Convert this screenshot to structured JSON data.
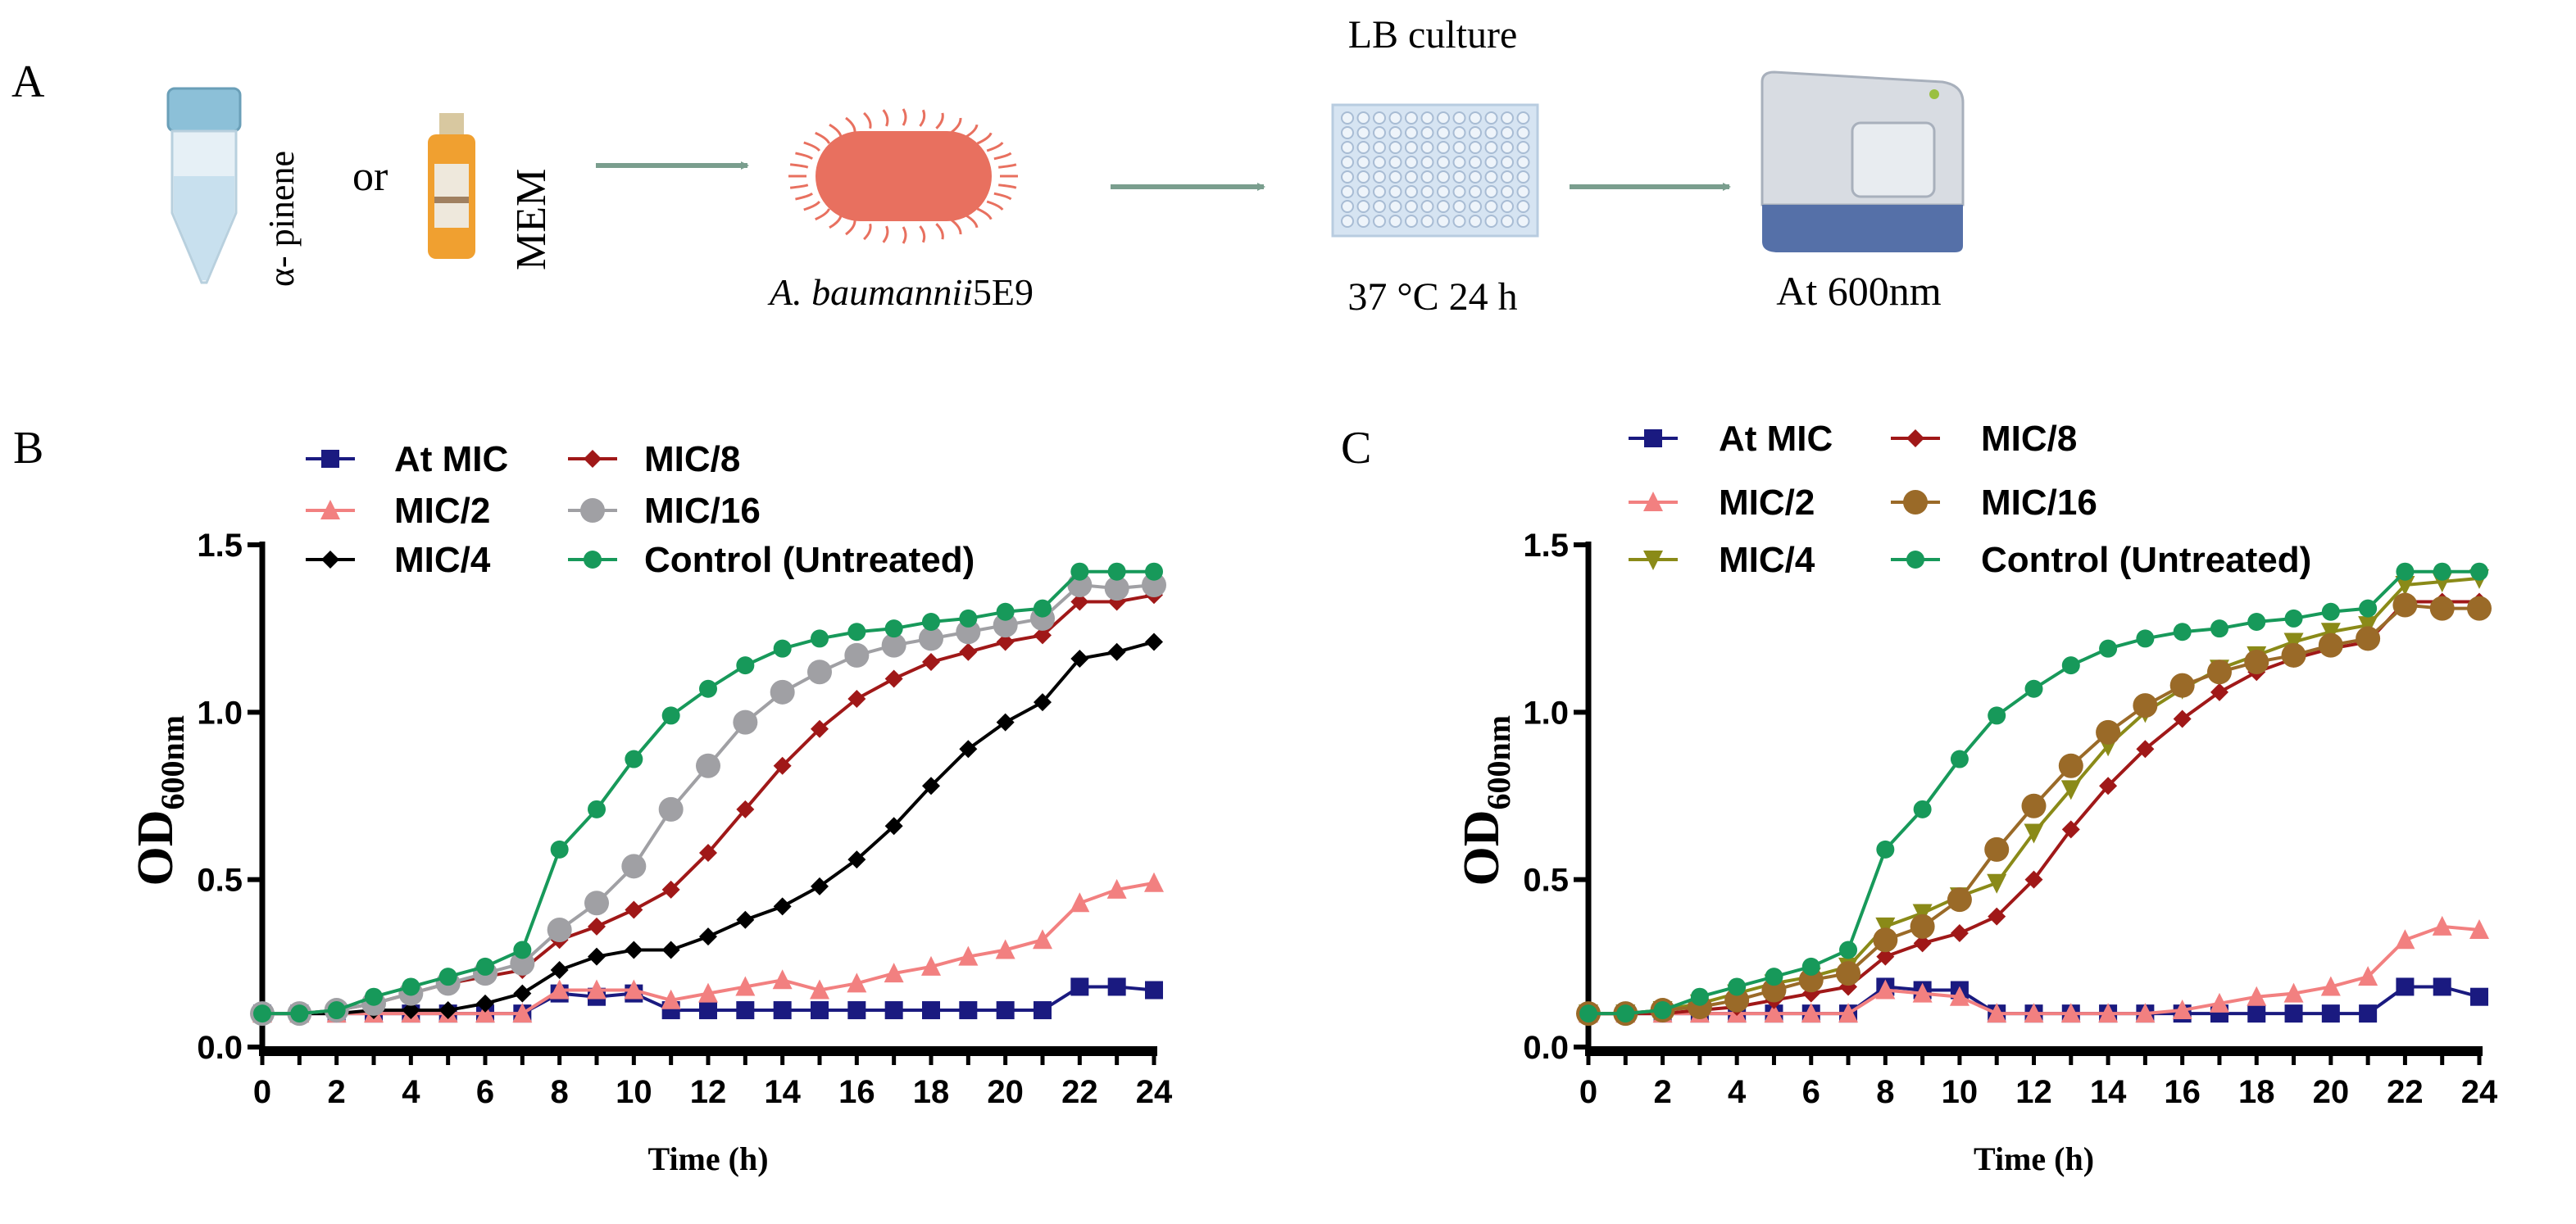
{
  "panel_a": {
    "label": "A",
    "compound1": "α- pinene",
    "or_text": "or",
    "compound2": "MEM",
    "organism": "A. baumannii",
    "strain": "5E9",
    "culture_label": "LB culture",
    "condition": "37 °C 24 h",
    "readout": "At 600nm",
    "colors": {
      "arrow": "#7a9e8e",
      "bacterium": "#e8705f",
      "plate": "#d6e4f2",
      "tube_cap": "#8cc0d8",
      "bottle": "#f0a030",
      "machine_base": "#5570a8"
    }
  },
  "chart_data": [
    {
      "panel_label": "B",
      "type": "line",
      "xlabel": "Time (h)",
      "ylabel_main": "OD",
      "ylabel_sub": "600nm",
      "xlim": [
        0,
        24
      ],
      "ylim": [
        0,
        1.5
      ],
      "xticks": [
        "0",
        "2",
        "4",
        "6",
        "8",
        "10",
        "12",
        "14",
        "16",
        "18",
        "20",
        "22",
        "24"
      ],
      "yticks": [
        "0.0",
        "0.5",
        "1.0",
        "1.5"
      ],
      "legend_placement": "top-left",
      "x": [
        0,
        1,
        2,
        3,
        4,
        5,
        6,
        7,
        8,
        9,
        10,
        11,
        12,
        13,
        14,
        15,
        16,
        17,
        18,
        19,
        20,
        21,
        22,
        23,
        24
      ],
      "series": [
        {
          "name": "At MIC",
          "color": "#1a1a80",
          "marker": "square",
          "values": [
            0.1,
            0.1,
            0.1,
            0.1,
            0.1,
            0.1,
            0.1,
            0.1,
            0.16,
            0.15,
            0.16,
            0.11,
            0.11,
            0.11,
            0.11,
            0.11,
            0.11,
            0.11,
            0.11,
            0.11,
            0.11,
            0.11,
            0.18,
            0.18,
            0.17
          ]
        },
        {
          "name": "MIC/2",
          "color": "#f28080",
          "marker": "triangle",
          "values": [
            0.1,
            0.1,
            0.1,
            0.1,
            0.1,
            0.1,
            0.1,
            0.1,
            0.17,
            0.17,
            0.17,
            0.14,
            0.16,
            0.18,
            0.2,
            0.17,
            0.19,
            0.22,
            0.24,
            0.27,
            0.29,
            0.32,
            0.43,
            0.47,
            0.49
          ]
        },
        {
          "name": "MIC/4",
          "color": "#000000",
          "marker": "diamond",
          "values": [
            0.1,
            0.1,
            0.1,
            0.11,
            0.11,
            0.11,
            0.13,
            0.16,
            0.23,
            0.27,
            0.29,
            0.29,
            0.33,
            0.38,
            0.42,
            0.48,
            0.56,
            0.66,
            0.78,
            0.89,
            0.97,
            1.03,
            1.16,
            1.18,
            1.21
          ]
        },
        {
          "name": "MIC/8",
          "color": "#a01818",
          "marker": "diamond",
          "values": [
            0.1,
            0.1,
            0.11,
            0.13,
            0.16,
            0.19,
            0.21,
            0.23,
            0.32,
            0.36,
            0.41,
            0.47,
            0.58,
            0.71,
            0.84,
            0.95,
            1.04,
            1.1,
            1.15,
            1.18,
            1.21,
            1.23,
            1.33,
            1.33,
            1.35
          ]
        },
        {
          "name": "MIC/16",
          "color": "#a0a0a4",
          "marker": "bigcircle",
          "values": [
            0.1,
            0.1,
            0.11,
            0.13,
            0.16,
            0.19,
            0.22,
            0.25,
            0.35,
            0.43,
            0.54,
            0.71,
            0.84,
            0.97,
            1.06,
            1.12,
            1.17,
            1.2,
            1.22,
            1.24,
            1.26,
            1.28,
            1.38,
            1.37,
            1.38
          ]
        },
        {
          "name": "Control (Untreated)",
          "color": "#17995a",
          "marker": "circle",
          "values": [
            0.1,
            0.1,
            0.11,
            0.15,
            0.18,
            0.21,
            0.24,
            0.29,
            0.59,
            0.71,
            0.86,
            0.99,
            1.07,
            1.14,
            1.19,
            1.22,
            1.24,
            1.25,
            1.27,
            1.28,
            1.3,
            1.31,
            1.42,
            1.42,
            1.42
          ]
        }
      ],
      "legend_order": [
        0,
        3,
        1,
        4,
        2,
        5
      ]
    },
    {
      "panel_label": "C",
      "type": "line",
      "xlabel": "Time (h)",
      "ylabel_main": "OD",
      "ylabel_sub": "600nm",
      "xlim": [
        0,
        24
      ],
      "ylim": [
        0,
        1.5
      ],
      "xticks": [
        "0",
        "2",
        "4",
        "6",
        "8",
        "10",
        "12",
        "14",
        "16",
        "18",
        "20",
        "22",
        "24"
      ],
      "yticks": [
        "0.0",
        "0.5",
        "1.0",
        "1.5"
      ],
      "legend_placement": "top-left",
      "x": [
        0,
        1,
        2,
        3,
        4,
        5,
        6,
        7,
        8,
        9,
        10,
        11,
        12,
        13,
        14,
        15,
        16,
        17,
        18,
        19,
        20,
        21,
        22,
        23,
        24
      ],
      "series": [
        {
          "name": "At MIC",
          "color": "#1a1a80",
          "marker": "square",
          "values": [
            0.1,
            0.1,
            0.1,
            0.1,
            0.1,
            0.1,
            0.1,
            0.1,
            0.18,
            0.17,
            0.17,
            0.1,
            0.1,
            0.1,
            0.1,
            0.1,
            0.1,
            0.1,
            0.1,
            0.1,
            0.1,
            0.1,
            0.18,
            0.18,
            0.15
          ]
        },
        {
          "name": "MIC/2",
          "color": "#f28080",
          "marker": "triangle",
          "values": [
            0.1,
            0.1,
            0.1,
            0.1,
            0.1,
            0.1,
            0.1,
            0.1,
            0.17,
            0.16,
            0.15,
            0.1,
            0.1,
            0.1,
            0.1,
            0.1,
            0.11,
            0.13,
            0.15,
            0.16,
            0.18,
            0.21,
            0.32,
            0.36,
            0.35
          ]
        },
        {
          "name": "MIC/4",
          "color": "#8a8a18",
          "marker": "downtriangle",
          "values": [
            0.1,
            0.1,
            0.11,
            0.13,
            0.16,
            0.19,
            0.21,
            0.24,
            0.36,
            0.4,
            0.45,
            0.49,
            0.64,
            0.77,
            0.9,
            1.0,
            1.07,
            1.13,
            1.17,
            1.21,
            1.24,
            1.26,
            1.38,
            1.39,
            1.4
          ]
        },
        {
          "name": "MIC/8",
          "color": "#a01818",
          "marker": "diamond",
          "values": [
            0.1,
            0.1,
            0.1,
            0.11,
            0.12,
            0.14,
            0.16,
            0.18,
            0.27,
            0.31,
            0.34,
            0.39,
            0.5,
            0.65,
            0.78,
            0.89,
            0.98,
            1.06,
            1.12,
            1.16,
            1.19,
            1.21,
            1.33,
            1.33,
            1.33
          ]
        },
        {
          "name": "MIC/16",
          "color": "#9a6a28",
          "marker": "bigcircle",
          "values": [
            0.1,
            0.1,
            0.11,
            0.12,
            0.14,
            0.17,
            0.2,
            0.22,
            0.32,
            0.36,
            0.44,
            0.59,
            0.72,
            0.84,
            0.94,
            1.02,
            1.08,
            1.12,
            1.15,
            1.17,
            1.2,
            1.22,
            1.32,
            1.31,
            1.31
          ]
        },
        {
          "name": "Control (Untreated)",
          "color": "#17995a",
          "marker": "circle",
          "values": [
            0.1,
            0.1,
            0.11,
            0.15,
            0.18,
            0.21,
            0.24,
            0.29,
            0.59,
            0.71,
            0.86,
            0.99,
            1.07,
            1.14,
            1.19,
            1.22,
            1.24,
            1.25,
            1.27,
            1.28,
            1.3,
            1.31,
            1.42,
            1.42,
            1.42
          ]
        }
      ],
      "legend_order": [
        0,
        3,
        1,
        4,
        2,
        5
      ]
    }
  ]
}
